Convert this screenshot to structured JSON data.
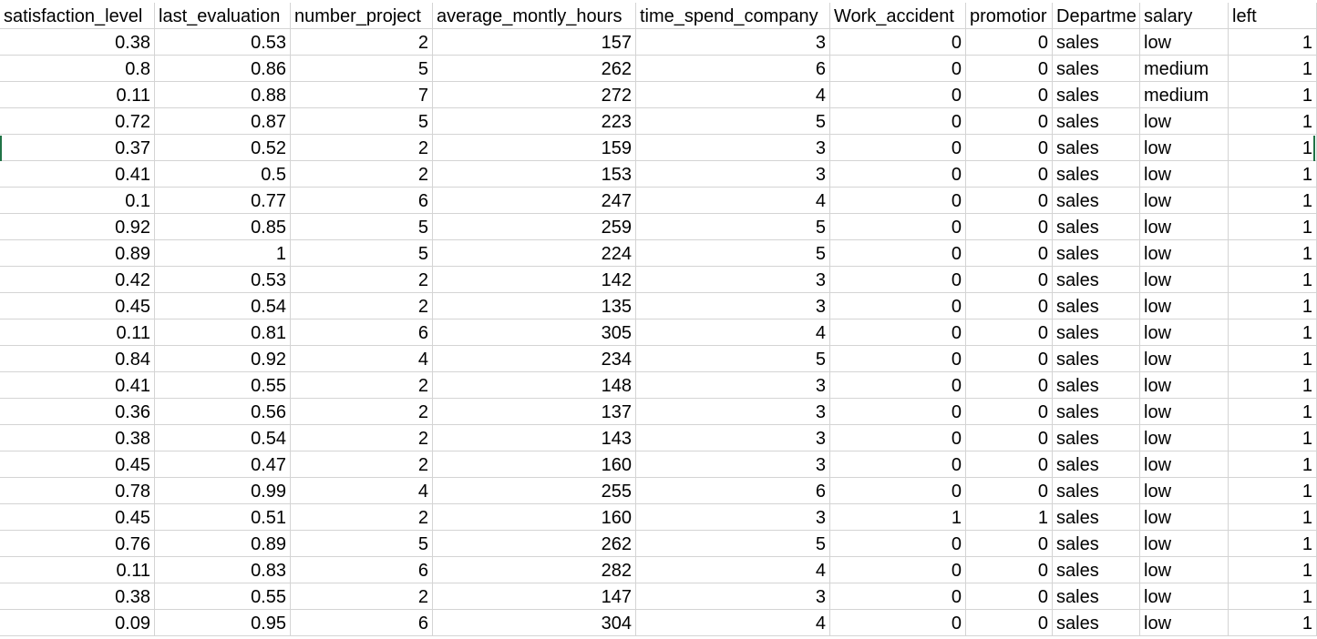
{
  "sheet": {
    "headers": [
      "satisfaction_level",
      "last_evaluation",
      "number_project",
      "average_montly_hours",
      "time_spend_company",
      "Work_accident",
      "promotior",
      "Departme",
      "salary",
      "left"
    ],
    "rows": [
      [
        "0.38",
        "0.53",
        "2",
        "157",
        "3",
        "0",
        "0",
        "sales",
        "low",
        "1"
      ],
      [
        "0.8",
        "0.86",
        "5",
        "262",
        "6",
        "0",
        "0",
        "sales",
        "medium",
        "1"
      ],
      [
        "0.11",
        "0.88",
        "7",
        "272",
        "4",
        "0",
        "0",
        "sales",
        "medium",
        "1"
      ],
      [
        "0.72",
        "0.87",
        "5",
        "223",
        "5",
        "0",
        "0",
        "sales",
        "low",
        "1"
      ],
      [
        "0.37",
        "0.52",
        "2",
        "159",
        "3",
        "0",
        "0",
        "sales",
        "low",
        "1"
      ],
      [
        "0.41",
        "0.5",
        "2",
        "153",
        "3",
        "0",
        "0",
        "sales",
        "low",
        "1"
      ],
      [
        "0.1",
        "0.77",
        "6",
        "247",
        "4",
        "0",
        "0",
        "sales",
        "low",
        "1"
      ],
      [
        "0.92",
        "0.85",
        "5",
        "259",
        "5",
        "0",
        "0",
        "sales",
        "low",
        "1"
      ],
      [
        "0.89",
        "1",
        "5",
        "224",
        "5",
        "0",
        "0",
        "sales",
        "low",
        "1"
      ],
      [
        "0.42",
        "0.53",
        "2",
        "142",
        "3",
        "0",
        "0",
        "sales",
        "low",
        "1"
      ],
      [
        "0.45",
        "0.54",
        "2",
        "135",
        "3",
        "0",
        "0",
        "sales",
        "low",
        "1"
      ],
      [
        "0.11",
        "0.81",
        "6",
        "305",
        "4",
        "0",
        "0",
        "sales",
        "low",
        "1"
      ],
      [
        "0.84",
        "0.92",
        "4",
        "234",
        "5",
        "0",
        "0",
        "sales",
        "low",
        "1"
      ],
      [
        "0.41",
        "0.55",
        "2",
        "148",
        "3",
        "0",
        "0",
        "sales",
        "low",
        "1"
      ],
      [
        "0.36",
        "0.56",
        "2",
        "137",
        "3",
        "0",
        "0",
        "sales",
        "low",
        "1"
      ],
      [
        "0.38",
        "0.54",
        "2",
        "143",
        "3",
        "0",
        "0",
        "sales",
        "low",
        "1"
      ],
      [
        "0.45",
        "0.47",
        "2",
        "160",
        "3",
        "0",
        "0",
        "sales",
        "low",
        "1"
      ],
      [
        "0.78",
        "0.99",
        "4",
        "255",
        "6",
        "0",
        "0",
        "sales",
        "low",
        "1"
      ],
      [
        "0.45",
        "0.51",
        "2",
        "160",
        "3",
        "1",
        "1",
        "sales",
        "low",
        "1"
      ],
      [
        "0.76",
        "0.89",
        "5",
        "262",
        "5",
        "0",
        "0",
        "sales",
        "low",
        "1"
      ],
      [
        "0.11",
        "0.83",
        "6",
        "282",
        "4",
        "0",
        "0",
        "sales",
        "low",
        "1"
      ],
      [
        "0.38",
        "0.55",
        "2",
        "147",
        "3",
        "0",
        "0",
        "sales",
        "low",
        "1"
      ],
      [
        "0.09",
        "0.95",
        "6",
        "304",
        "4",
        "0",
        "0",
        "sales",
        "low",
        "1"
      ]
    ]
  },
  "colors": {
    "gridline": "#d4d4d4",
    "selection_accent": "#217346",
    "text": "#000000"
  }
}
